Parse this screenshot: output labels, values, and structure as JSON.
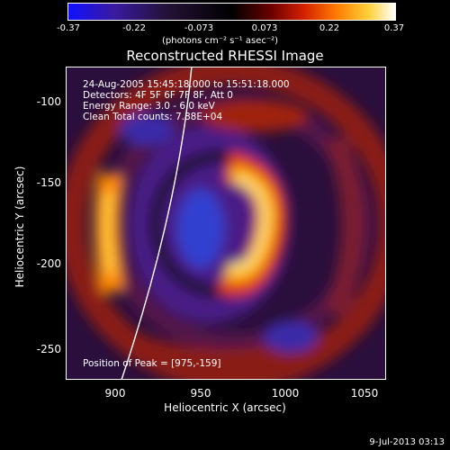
{
  "colorbar": {
    "ticks": [
      "-0.37",
      "-0.22",
      "-0.073",
      "0.073",
      "0.22",
      "0.37"
    ],
    "units": "(photons cm⁻² s⁻¹ asec⁻²)",
    "colors": [
      "#1010ff",
      "#3a1aa0",
      "#241238",
      "#000000",
      "#6b0000",
      "#d42000",
      "#ff7a00",
      "#ffd23a",
      "#ffffff"
    ]
  },
  "title": "Reconstructed RHESSI Image",
  "info": {
    "time_range": "24-Aug-2005 15:45:18.000 to 15:51:18.000",
    "detectors": "Detectors: 4F 5F 6F 7F 8F, Att 0",
    "energy": "Energy Range: 3.0 - 6.0 keV",
    "clean": "Clean     Total counts: 7.88E+04",
    "peak": "Position of Peak = [975,-159]"
  },
  "axes": {
    "x_label": "Heliocentric X (arcsec)",
    "y_label": "Heliocentric Y (arcsec)",
    "x_ticks": [
      "900",
      "950",
      "1000",
      "1050"
    ],
    "y_ticks": [
      "-100",
      "-150",
      "-200",
      "-250"
    ]
  },
  "datestamp": "9-Jul-2013 03:13"
}
